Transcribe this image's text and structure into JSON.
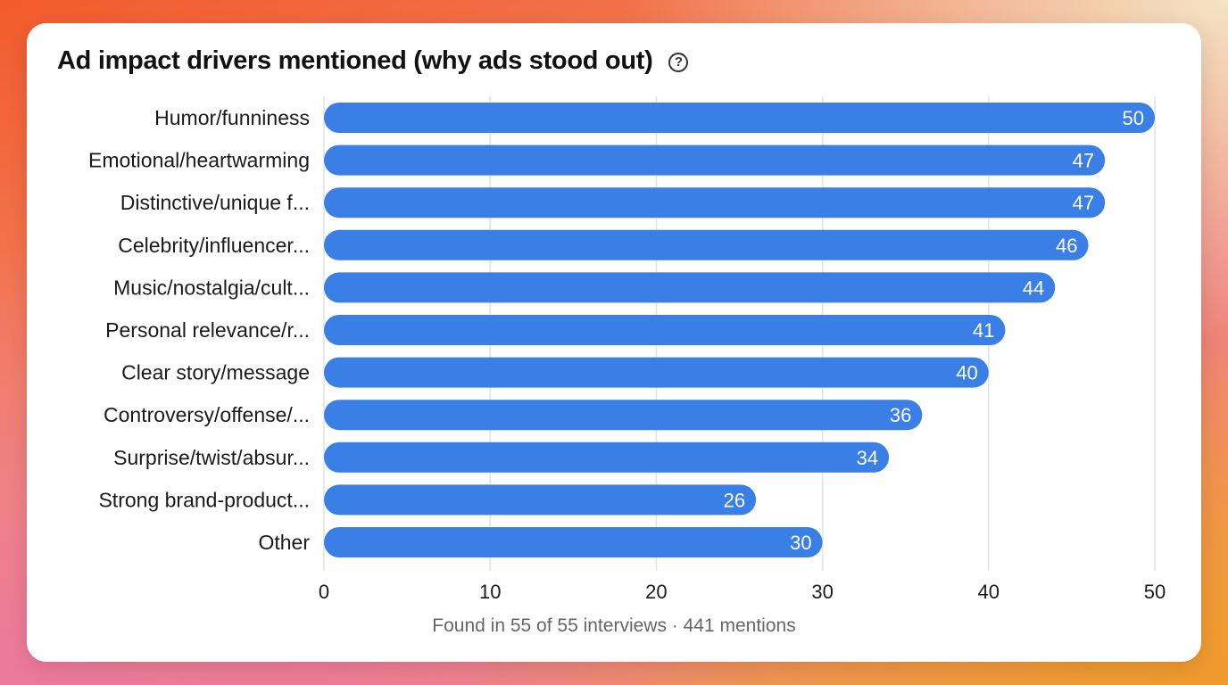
{
  "colors": {
    "bar": "#3a7fe6",
    "grid": "#e2e2e2",
    "label": "#1a1a1a",
    "value_text": "#ffffff"
  },
  "help_icon": "question-circle-icon",
  "help_glyph": "?",
  "footer": "Found in 55 of 55 interviews · 441 mentions",
  "chart_data": {
    "type": "bar",
    "orientation": "horizontal",
    "title": "Ad impact drivers mentioned (why ads stood out)",
    "categories": [
      "Humor/funniness",
      "Emotional/heartwarming",
      "Distinctive/unique f...",
      "Celebrity/influencer...",
      "Music/nostalgia/cult...",
      "Personal relevance/r...",
      "Clear story/message",
      "Controversy/offense/...",
      "Surprise/twist/absur...",
      "Strong brand-product...",
      "Other"
    ],
    "values": [
      50,
      47,
      47,
      46,
      44,
      41,
      40,
      36,
      34,
      26,
      30
    ],
    "xlim": [
      0,
      50
    ],
    "xticks": [
      0,
      10,
      20,
      30,
      40,
      50
    ],
    "grid": true,
    "data_labels": true
  }
}
